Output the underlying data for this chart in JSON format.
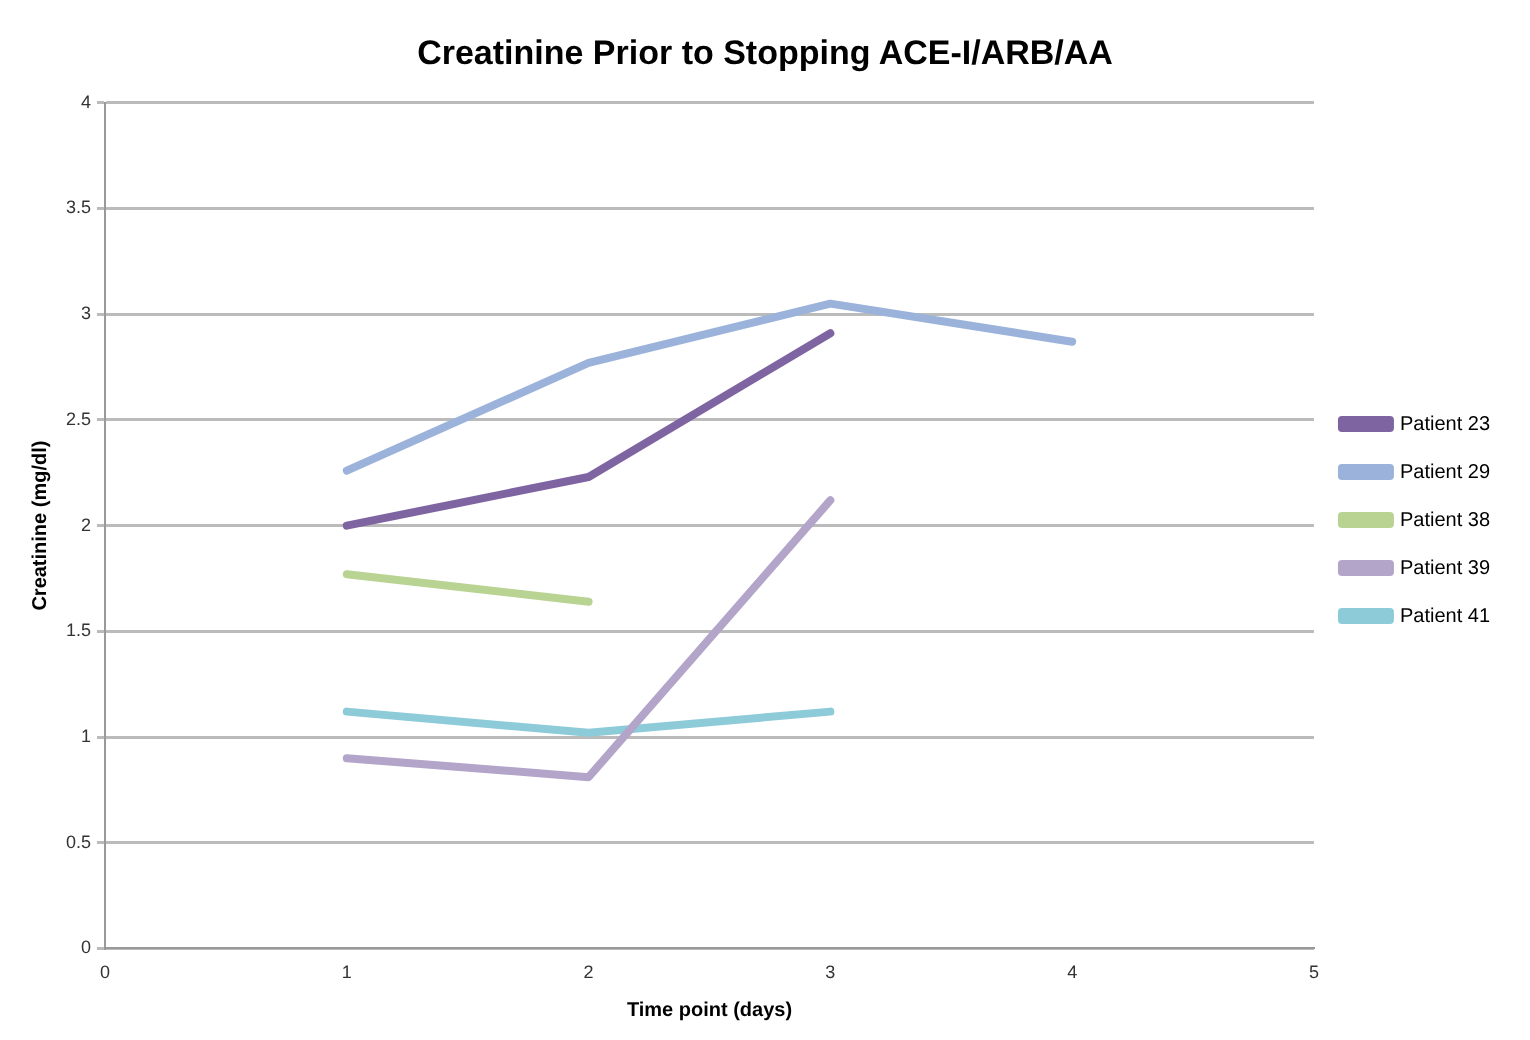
{
  "chart_data": {
    "type": "line",
    "title": "Creatinine Prior to Stopping ACE-I/ARB/AA",
    "xlabel": "Time point (days)",
    "ylabel": "Creatinine (mg/dl)",
    "x": [
      1,
      2,
      3,
      4
    ],
    "series": [
      {
        "name": "Patient 23",
        "color": "#7f64a2",
        "values": [
          2.0,
          2.23,
          2.91,
          null
        ]
      },
      {
        "name": "Patient 29",
        "color": "#9bb3da",
        "values": [
          2.26,
          2.77,
          3.05,
          2.87
        ]
      },
      {
        "name": "Patient 38",
        "color": "#b9d393",
        "values": [
          1.77,
          1.64,
          null,
          null
        ]
      },
      {
        "name": "Patient 39",
        "color": "#b3a4c9",
        "values": [
          0.9,
          0.81,
          2.12,
          null
        ]
      },
      {
        "name": "Patient 41",
        "color": "#8ecbd9",
        "values": [
          1.12,
          1.02,
          1.12,
          null
        ]
      }
    ],
    "xlim": [
      0,
      5
    ],
    "xticks": [
      0,
      1,
      2,
      3,
      4,
      5
    ],
    "ylim": [
      0,
      4
    ],
    "yticks": [
      0,
      0.5,
      1,
      1.5,
      2,
      2.5,
      3,
      3.5,
      4
    ],
    "grid": "y",
    "legend": "right",
    "marker": "none",
    "line_style": "solid"
  }
}
